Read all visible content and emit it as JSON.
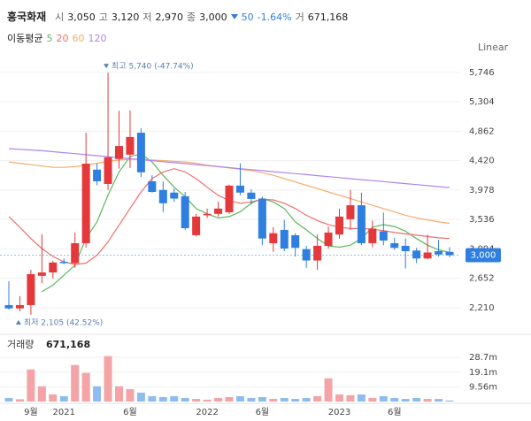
{
  "header": {
    "name": "흥국화재",
    "items": [
      {
        "label": "시",
        "value": "3,050"
      },
      {
        "label": "고",
        "value": "3,120"
      },
      {
        "label": "저",
        "value": "2,970"
      },
      {
        "label": "종",
        "value": "3,000"
      }
    ],
    "change": "50",
    "change_pct": "-1.64%",
    "volume_label": "거",
    "volume": "671,168"
  },
  "chart_data": {
    "type": "candlestick",
    "scale_label": "Linear",
    "grid": true,
    "up_color": "#e5383b",
    "down_color": "#2f7fe0",
    "categories": [
      null,
      null,
      "9월",
      null,
      null,
      "2021",
      null,
      null,
      null,
      null,
      null,
      "6월",
      null,
      null,
      null,
      null,
      null,
      null,
      "2022",
      null,
      null,
      null,
      null,
      "6월",
      null,
      null,
      null,
      null,
      null,
      null,
      "2023",
      null,
      null,
      null,
      null,
      "6월",
      null,
      null,
      null,
      null,
      null
    ],
    "open": [
      2250,
      2200,
      2250,
      2690,
      2740,
      2900,
      2880,
      3180,
      4285,
      4070,
      4445,
      4510,
      4840,
      4110,
      3980,
      3940,
      3885,
      3300,
      3600,
      3620,
      3645,
      4045,
      3940,
      3850,
      3180,
      3380,
      3300,
      3090,
      2920,
      3140,
      3310,
      3540,
      3750,
      3180,
      3360,
      3180,
      3140,
      3070,
      2950,
      3060,
      3050
    ],
    "high": [
      2610,
      2385,
      2780,
      3315,
      2915,
      2950,
      3340,
      4840,
      4380,
      5740,
      5170,
      5175,
      4905,
      4200,
      4110,
      4000,
      3950,
      3620,
      3700,
      3800,
      4060,
      4380,
      3990,
      3880,
      3420,
      3530,
      3330,
      3140,
      3310,
      3430,
      3700,
      3980,
      3940,
      3520,
      3640,
      3260,
      3250,
      3110,
      3310,
      3230,
      3120
    ],
    "low": [
      2185,
      2155,
      2105,
      2580,
      2650,
      2860,
      2810,
      3115,
      4050,
      3980,
      4300,
      4310,
      4175,
      3940,
      3650,
      3800,
      3380,
      3280,
      3560,
      3580,
      3620,
      3900,
      3760,
      3150,
      3050,
      3060,
      2980,
      2810,
      2780,
      3100,
      3250,
      3380,
      3150,
      3120,
      3150,
      3080,
      2800,
      2880,
      2940,
      2980,
      2970
    ],
    "close": [
      2200,
      2250,
      2715,
      2740,
      2890,
      2880,
      3180,
      4375,
      4110,
      4470,
      4640,
      4775,
      4245,
      3950,
      3780,
      3850,
      3405,
      3580,
      3620,
      3700,
      4045,
      3940,
      3845,
      3250,
      3330,
      3100,
      3110,
      2920,
      3140,
      3340,
      3580,
      3750,
      3180,
      3400,
      3220,
      3110,
      3060,
      2950,
      3040,
      3010,
      3000
    ],
    "ylim": [
      2050,
      5930
    ],
    "yticks": [
      {
        "value": 2210,
        "label": "2,210"
      },
      {
        "value": 2652,
        "label": "2,652"
      },
      {
        "value": 3094,
        "label": "3,094"
      },
      {
        "value": 3536,
        "label": "3,536"
      },
      {
        "value": 3978,
        "label": "3,978"
      },
      {
        "value": 4420,
        "label": "4,420"
      },
      {
        "value": 4862,
        "label": "4,862"
      },
      {
        "value": 5304,
        "label": "5,304"
      },
      {
        "value": 5746,
        "label": "5,746"
      }
    ],
    "last_price": {
      "value": 3000,
      "label": "3,000"
    },
    "annotations": {
      "high": "최고 5,740 (-47.74%)",
      "low": "최저 2,105 (42.52%)"
    },
    "ma_title": "이동평균",
    "series": [
      {
        "name": "5",
        "color": "#5cb85c",
        "values": [
          null,
          null,
          null,
          2450,
          2550,
          2700,
          2850,
          3250,
          3500,
          3900,
          4250,
          4480,
          4520,
          4400,
          4200,
          4020,
          3880,
          3700,
          3620,
          3560,
          3580,
          3650,
          3780,
          3850,
          3800,
          3700,
          3500,
          3380,
          3250,
          3140,
          3120,
          3150,
          3250,
          3420,
          3460,
          3430,
          3360,
          3250,
          3150,
          3080,
          3040
        ]
      },
      {
        "name": "20",
        "color": "#ef6f6f",
        "values": [
          3580,
          3420,
          3250,
          3100,
          2980,
          2900,
          2860,
          2880,
          3000,
          3200,
          3450,
          3700,
          3950,
          4150,
          4250,
          4300,
          4250,
          4150,
          4020,
          3900,
          3820,
          3780,
          3800,
          3840,
          3830,
          3780,
          3700,
          3600,
          3520,
          3460,
          3420,
          3400,
          3400,
          3390,
          3370,
          3340,
          3320,
          3300,
          3280,
          3260,
          3250
        ]
      },
      {
        "name": "60",
        "color": "#f5ad6e",
        "values": [
          4400,
          4380,
          4360,
          4340,
          4320,
          4320,
          4330,
          4350,
          4380,
          4410,
          4430,
          4440,
          4440,
          4430,
          4420,
          4410,
          4400,
          4380,
          4350,
          4330,
          4310,
          4290,
          4270,
          4240,
          4200,
          4150,
          4100,
          4050,
          4000,
          3950,
          3900,
          3850,
          3800,
          3750,
          3700,
          3650,
          3600,
          3560,
          3530,
          3500,
          3480
        ]
      },
      {
        "name": "120",
        "color": "#b084f0",
        "values": [
          4600,
          4590,
          4580,
          4570,
          4555,
          4540,
          4525,
          4510,
          4495,
          4480,
          4465,
          4450,
          4435,
          4420,
          4405,
          4390,
          4375,
          4360,
          4345,
          4330,
          4315,
          4300,
          4285,
          4270,
          4255,
          4240,
          4225,
          4210,
          4195,
          4180,
          4165,
          4150,
          4135,
          4120,
          4105,
          4090,
          4075,
          4060,
          4045,
          4030,
          4015
        ]
      }
    ],
    "volume": {
      "title": "거래량",
      "last_label": "671,168",
      "up_color": "#f4a3a6",
      "down_color": "#8fbcf0",
      "values": [
        2300000,
        1500000,
        20900000,
        9900000,
        4600000,
        3500000,
        23800000,
        18600000,
        9900000,
        29600000,
        9900000,
        8100000,
        5800000,
        3500000,
        2900000,
        3500000,
        2300000,
        1700000,
        1200000,
        2300000,
        2900000,
        3500000,
        2300000,
        2900000,
        1700000,
        2300000,
        1700000,
        2300000,
        3500000,
        15100000,
        4600000,
        4100000,
        4600000,
        2300000,
        3500000,
        2300000,
        1700000,
        2300000,
        1700000,
        1700000,
        671168
      ],
      "ylim": [
        0,
        39700000
      ],
      "yticks": [
        {
          "value": 9560000,
          "label": "9.56m"
        },
        {
          "value": 19100000,
          "label": "19.1m"
        },
        {
          "value": 28700000,
          "label": "28.7m"
        }
      ]
    }
  }
}
